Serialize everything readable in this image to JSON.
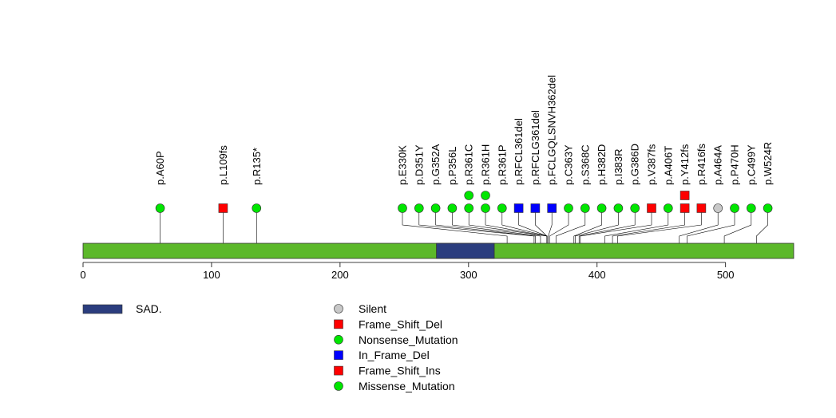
{
  "chart_data": {
    "type": "lollipop",
    "protein_length": 553,
    "x_axis": {
      "range": [
        0,
        553
      ],
      "ticks": [
        0,
        100,
        200,
        300,
        400,
        500
      ],
      "tick_labels": [
        "0",
        "100",
        "200",
        "300",
        "400",
        "500"
      ]
    },
    "domains": [
      {
        "name": "SAD.",
        "start": 275,
        "end": 320,
        "color": "#2b3d7e"
      }
    ],
    "backbone_color": "#5cb82a",
    "mutation_types": [
      {
        "name": "Silent",
        "color": "#c8c8c8",
        "shape": "circle"
      },
      {
        "name": "Frame_Shift_Del",
        "color": "#ff0000",
        "shape": "square"
      },
      {
        "name": "Nonsense_Mutation",
        "color": "#00e600",
        "shape": "circle"
      },
      {
        "name": "In_Frame_Del",
        "color": "#0000ff",
        "shape": "square"
      },
      {
        "name": "Frame_Shift_Ins",
        "color": "#ff0000",
        "shape": "square"
      },
      {
        "name": "Missense_Mutation",
        "color": "#00e600",
        "shape": "circle"
      }
    ],
    "mutations": [
      {
        "label": "p.A60P",
        "position": 60,
        "type": "Missense_Mutation",
        "count": 1
      },
      {
        "label": "p.L109fs",
        "position": 109,
        "type": "Frame_Shift_Del",
        "count": 1
      },
      {
        "label": "p.R135*",
        "position": 135,
        "type": "Nonsense_Mutation",
        "count": 1
      },
      {
        "label": "p.E330K",
        "position": 330,
        "type": "Missense_Mutation",
        "count": 1
      },
      {
        "label": "p.D351Y",
        "position": 351,
        "type": "Missense_Mutation",
        "count": 1
      },
      {
        "label": "p.G352A",
        "position": 352,
        "type": "Missense_Mutation",
        "count": 1
      },
      {
        "label": "p.P356L",
        "position": 356,
        "type": "Missense_Mutation",
        "count": 1
      },
      {
        "label": "p.R361C",
        "position": 361,
        "type": "Missense_Mutation",
        "count": 2
      },
      {
        "label": "p.R361H",
        "position": 361,
        "type": "Missense_Mutation",
        "count": 2
      },
      {
        "label": "p.R361P",
        "position": 361,
        "type": "Missense_Mutation",
        "count": 1
      },
      {
        "label": "p.RFCL361del",
        "position": 361,
        "type": "In_Frame_Del",
        "count": 1
      },
      {
        "label": "p.RFCLG361del",
        "position": 361,
        "type": "In_Frame_Del",
        "count": 1
      },
      {
        "label": "p.FCLGQLSNVH362del",
        "position": 362,
        "type": "In_Frame_Del",
        "count": 1
      },
      {
        "label": "p.C363Y",
        "position": 363,
        "type": "Missense_Mutation",
        "count": 1
      },
      {
        "label": "p.S368C",
        "position": 368,
        "type": "Missense_Mutation",
        "count": 1
      },
      {
        "label": "p.H382D",
        "position": 382,
        "type": "Missense_Mutation",
        "count": 1
      },
      {
        "label": "p.I383R",
        "position": 383,
        "type": "Missense_Mutation",
        "count": 1
      },
      {
        "label": "p.G386D",
        "position": 386,
        "type": "Missense_Mutation",
        "count": 1
      },
      {
        "label": "p.V387fs",
        "position": 387,
        "type": "Frame_Shift_Del",
        "count": 1
      },
      {
        "label": "p.A406T",
        "position": 406,
        "type": "Missense_Mutation",
        "count": 1
      },
      {
        "label": "p.Y412fs",
        "position": 412,
        "type": "Frame_Shift_Del",
        "count": 2
      },
      {
        "label": "p.R416fs",
        "position": 416,
        "type": "Frame_Shift_Del",
        "count": 1
      },
      {
        "label": "p.A464A",
        "position": 464,
        "type": "Silent",
        "count": 1
      },
      {
        "label": "p.P470H",
        "position": 470,
        "type": "Missense_Mutation",
        "count": 1
      },
      {
        "label": "p.C499Y",
        "position": 499,
        "type": "Missense_Mutation",
        "count": 1
      },
      {
        "label": "p.W524R",
        "position": 524,
        "type": "Missense_Mutation",
        "count": 1
      }
    ]
  }
}
